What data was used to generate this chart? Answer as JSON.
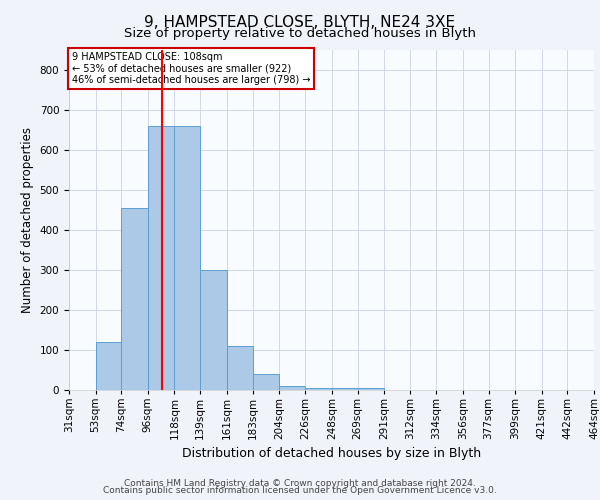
{
  "title1": "9, HAMPSTEAD CLOSE, BLYTH, NE24 3XE",
  "title2": "Size of property relative to detached houses in Blyth",
  "xlabel": "Distribution of detached houses by size in Blyth",
  "ylabel": "Number of detached properties",
  "bin_labels": [
    "31sqm",
    "53sqm",
    "74sqm",
    "96sqm",
    "118sqm",
    "139sqm",
    "161sqm",
    "183sqm",
    "204sqm",
    "226sqm",
    "248sqm",
    "269sqm",
    "291sqm",
    "312sqm",
    "334sqm",
    "356sqm",
    "377sqm",
    "399sqm",
    "421sqm",
    "442sqm",
    "464sqm"
  ],
  "bin_edges": [
    31,
    53,
    74,
    96,
    118,
    139,
    161,
    183,
    204,
    226,
    248,
    269,
    291,
    312,
    334,
    356,
    377,
    399,
    421,
    442,
    464
  ],
  "bar_heights": [
    0,
    120,
    455,
    660,
    660,
    300,
    110,
    40,
    10,
    5,
    5,
    5,
    0,
    0,
    0,
    0,
    0,
    0,
    0,
    0,
    0
  ],
  "bar_color": "#adc9e8",
  "bar_edge_color": "#5a9fd4",
  "red_line_x": 108,
  "ylim": [
    0,
    850
  ],
  "yticks": [
    0,
    100,
    200,
    300,
    400,
    500,
    600,
    700,
    800
  ],
  "annotation_text": "9 HAMPSTEAD CLOSE: 108sqm\n← 53% of detached houses are smaller (922)\n46% of semi-detached houses are larger (798) →",
  "annotation_box_color": "#ffffff",
  "annotation_box_edge": "#cc0000",
  "footer1": "Contains HM Land Registry data © Crown copyright and database right 2024.",
  "footer2": "Contains public sector information licensed under the Open Government Licence v3.0.",
  "bg_color": "#f0f4fa",
  "plot_bg_color": "#f8fbff",
  "grid_color": "#d0d8e8",
  "title1_fontsize": 11,
  "title2_fontsize": 9.5,
  "xlabel_fontsize": 9,
  "ylabel_fontsize": 8.5,
  "tick_fontsize": 7.5,
  "annotation_fontsize": 7,
  "footer_fontsize": 6.5
}
